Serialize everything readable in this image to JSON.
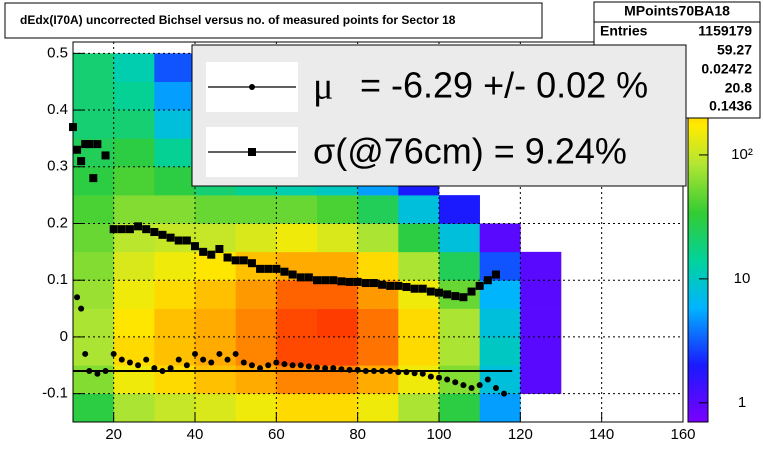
{
  "chart_data": {
    "type": "heatmap",
    "title": "dEdx(I70A) uncorrected Bichsel versus no. of measured points for Sector 18",
    "xlim": [
      10,
      160
    ],
    "ylim": [
      -0.15,
      0.52
    ],
    "xticks": [
      20,
      40,
      60,
      80,
      100,
      120,
      140,
      160
    ],
    "yticks": [
      -0.1,
      0,
      0.1,
      0.2,
      0.3,
      0.4,
      0.5
    ],
    "grid": true,
    "x_bins": [
      10,
      20,
      30,
      40,
      50,
      60,
      70,
      80,
      90,
      100,
      110,
      120,
      130
    ],
    "y_bins": [
      -0.15,
      -0.1,
      -0.05,
      0,
      0.05,
      0.1,
      0.15,
      0.2,
      0.25,
      0.3,
      0.35,
      0.4,
      0.45,
      0.5
    ],
    "z": [
      [
        30,
        80,
        100,
        120,
        150,
        200,
        200,
        150,
        80,
        30,
        5,
        0
      ],
      [
        60,
        150,
        200,
        250,
        300,
        400,
        400,
        300,
        150,
        60,
        8,
        1
      ],
      [
        80,
        200,
        250,
        300,
        400,
        600,
        600,
        450,
        200,
        80,
        10,
        1
      ],
      [
        80,
        180,
        250,
        300,
        400,
        600,
        650,
        450,
        200,
        80,
        8,
        1
      ],
      [
        70,
        150,
        200,
        250,
        350,
        500,
        500,
        350,
        150,
        50,
        6,
        1
      ],
      [
        60,
        120,
        150,
        180,
        250,
        300,
        300,
        200,
        80,
        25,
        3,
        1
      ],
      [
        50,
        90,
        100,
        100,
        120,
        150,
        120,
        80,
        30,
        8,
        1,
        0
      ],
      [
        40,
        60,
        60,
        50,
        50,
        50,
        40,
        25,
        8,
        2,
        0,
        0
      ],
      [
        30,
        40,
        30,
        20,
        15,
        12,
        10,
        5,
        2,
        0,
        0,
        0
      ],
      [
        25,
        30,
        15,
        8,
        5,
        4,
        3,
        2,
        1,
        0,
        0,
        0
      ],
      [
        20,
        20,
        8,
        4,
        2,
        2,
        2,
        1,
        0,
        0,
        0,
        0
      ],
      [
        20,
        15,
        5,
        2,
        1,
        1,
        1,
        1,
        0,
        0,
        0,
        0
      ],
      [
        20,
        12,
        3,
        1,
        1,
        1,
        1,
        0,
        0,
        0,
        0,
        0
      ]
    ],
    "colorbar": {
      "log": true,
      "zlim": [
        0.7,
        815
      ],
      "ticks": [
        1,
        10,
        {
          "value": 100,
          "label": "10²"
        }
      ]
    },
    "series": [
      {
        "name": "= -6.29 +/-  0.02 %",
        "symbol": "μ",
        "marker": "circle",
        "color": "#000000",
        "x": [
          11,
          12,
          13,
          14,
          16,
          18,
          20,
          22,
          24,
          26,
          28,
          30,
          32,
          34,
          36,
          38,
          40,
          42,
          44,
          46,
          48,
          50,
          52,
          54,
          56,
          58,
          60,
          62,
          64,
          66,
          68,
          70,
          72,
          74,
          76,
          78,
          80,
          82,
          84,
          86,
          88,
          90,
          92,
          94,
          96,
          98,
          100,
          102,
          104,
          106,
          108,
          110,
          112,
          114,
          116
        ],
        "values": [
          0.07,
          0.05,
          -0.03,
          -0.06,
          -0.065,
          -0.06,
          -0.03,
          -0.04,
          -0.045,
          -0.05,
          -0.04,
          -0.055,
          -0.06,
          -0.055,
          -0.04,
          -0.05,
          -0.03,
          -0.04,
          -0.045,
          -0.03,
          -0.04,
          -0.03,
          -0.045,
          -0.05,
          -0.055,
          -0.05,
          -0.045,
          -0.048,
          -0.05,
          -0.05,
          -0.052,
          -0.054,
          -0.055,
          -0.055,
          -0.057,
          -0.058,
          -0.058,
          -0.06,
          -0.06,
          -0.06,
          -0.06,
          -0.062,
          -0.062,
          -0.064,
          -0.065,
          -0.07,
          -0.072,
          -0.075,
          -0.08,
          -0.085,
          -0.09,
          -0.085,
          -0.075,
          -0.09,
          -0.1
        ]
      },
      {
        "name": "σ(@76cm) =  9.24%",
        "marker": "square",
        "color": "#000000",
        "x": [
          10,
          11,
          12,
          13,
          14,
          15,
          16,
          18,
          20,
          22,
          24,
          26,
          28,
          30,
          32,
          34,
          36,
          38,
          40,
          42,
          44,
          46,
          48,
          50,
          52,
          54,
          56,
          58,
          60,
          62,
          64,
          66,
          68,
          70,
          72,
          74,
          76,
          78,
          80,
          82,
          84,
          86,
          88,
          90,
          92,
          94,
          96,
          98,
          100,
          102,
          104,
          106,
          108,
          110,
          112,
          114
        ],
        "values": [
          0.37,
          0.33,
          0.31,
          0.34,
          0.34,
          0.28,
          0.34,
          0.32,
          0.19,
          0.19,
          0.19,
          0.195,
          0.19,
          0.185,
          0.18,
          0.175,
          0.17,
          0.17,
          0.16,
          0.15,
          0.145,
          0.155,
          0.14,
          0.135,
          0.135,
          0.13,
          0.12,
          0.12,
          0.12,
          0.115,
          0.11,
          0.105,
          0.105,
          0.1,
          0.1,
          0.1,
          0.098,
          0.097,
          0.097,
          0.095,
          0.095,
          0.092,
          0.09,
          0.09,
          0.088,
          0.085,
          0.085,
          0.08,
          0.078,
          0.075,
          0.072,
          0.07,
          0.08,
          0.09,
          0.1,
          0.11
        ]
      }
    ],
    "fit": {
      "x": [
        10,
        118
      ],
      "values": [
        -0.06,
        -0.06
      ]
    },
    "stats": {
      "title": "MPoints70BA18",
      "entries_label": "Entries",
      "values": [
        1159179,
        59.27,
        0.02472,
        20.8,
        0.1436
      ]
    }
  }
}
